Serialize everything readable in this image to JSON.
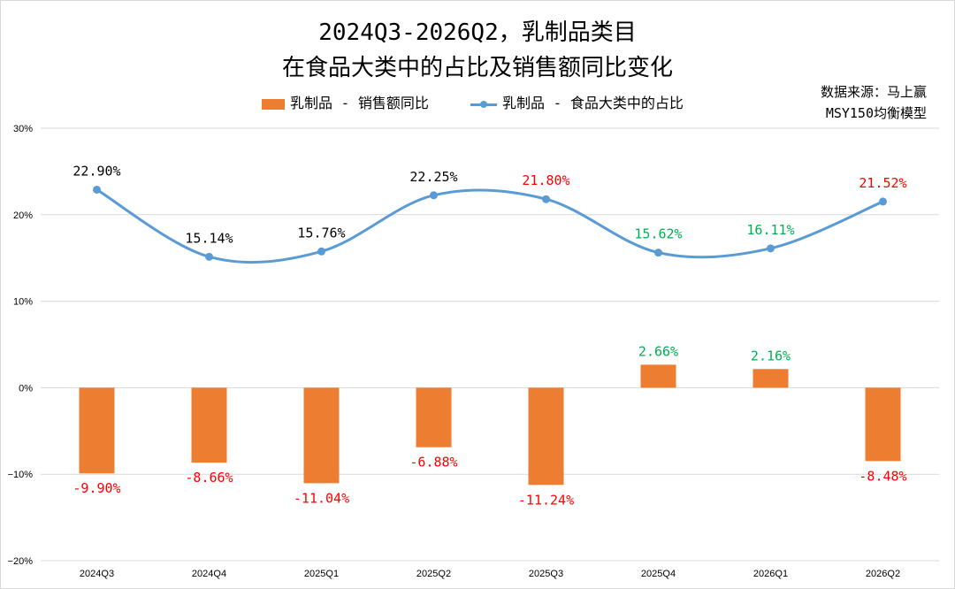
{
  "title_line1": "2024Q3-2026Q2，乳制品类目",
  "title_line2": "在食品大类中的占比及销售额同比变化",
  "source_line1": "数据来源：马上赢",
  "source_line2": "MSY150均衡模型",
  "colors": {
    "bar": "#ED7D31",
    "line": "#5B9BD5",
    "negative_label": "#FF0000",
    "decline_label": "#FF0000",
    "rise_label": "#00B050",
    "neutral_label": "#000000",
    "grid": "#D9D9D9",
    "axis_text": "#000000"
  },
  "chart_data": {
    "type": "bar+line",
    "categories": [
      "2024Q3",
      "2024Q4",
      "2025Q1",
      "2025Q2",
      "2025Q3",
      "2025Q4",
      "2026Q1",
      "2026Q2"
    ],
    "y_axis": {
      "ylim": [
        -20,
        30
      ],
      "ticks": [
        30,
        20,
        10,
        0,
        -10,
        -20
      ],
      "tick_labels": [
        "30%",
        "20%",
        "10%",
        "0%",
        "−10%",
        "−20%"
      ],
      "grid": true
    },
    "legend_position": "top",
    "series": [
      {
        "name": "乳制品 - 销售额同比",
        "type": "bar",
        "values": [
          -9.9,
          -8.66,
          -11.04,
          -6.88,
          -11.24,
          2.66,
          2.16,
          -8.48
        ],
        "labels": [
          "-9.90%",
          "-8.66%",
          "-11.04%",
          "-6.88%",
          "-11.24%",
          "2.66%",
          "2.16%",
          "-8.48%"
        ],
        "label_colors": [
          "negative",
          "negative",
          "negative",
          "negative",
          "negative",
          "rise",
          "rise",
          "negative"
        ]
      },
      {
        "name": "乳制品 - 食品大类中的占比",
        "type": "line",
        "smooth": true,
        "values": [
          22.9,
          15.14,
          15.76,
          22.25,
          21.8,
          15.62,
          16.11,
          21.52
        ],
        "labels": [
          "22.90%",
          "15.14%",
          "15.76%",
          "22.25%",
          "21.80%",
          "15.62%",
          "16.11%",
          "21.52%"
        ],
        "label_colors": [
          "neutral",
          "neutral",
          "neutral",
          "neutral",
          "decline",
          "rise",
          "rise",
          "decline"
        ]
      }
    ]
  }
}
